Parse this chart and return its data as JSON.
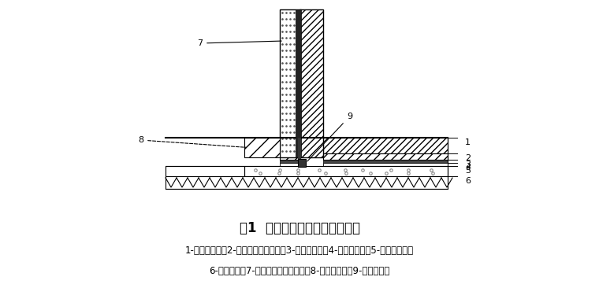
{
  "title": "图1  地下室聚氨酯涂膜防水构造",
  "caption_line1": "1-混凝土底板；2-细石混凝土保护层；3-涂膜防水层；4-砂浆找平层；5-混凝土垫层；",
  "caption_line2": "6-素土夯实；7-挤塑聚苯乙烯泡沫板；8-砖砌模板墙；9-钢板止水带",
  "bg_color": "#ffffff",
  "lc": "#000000"
}
